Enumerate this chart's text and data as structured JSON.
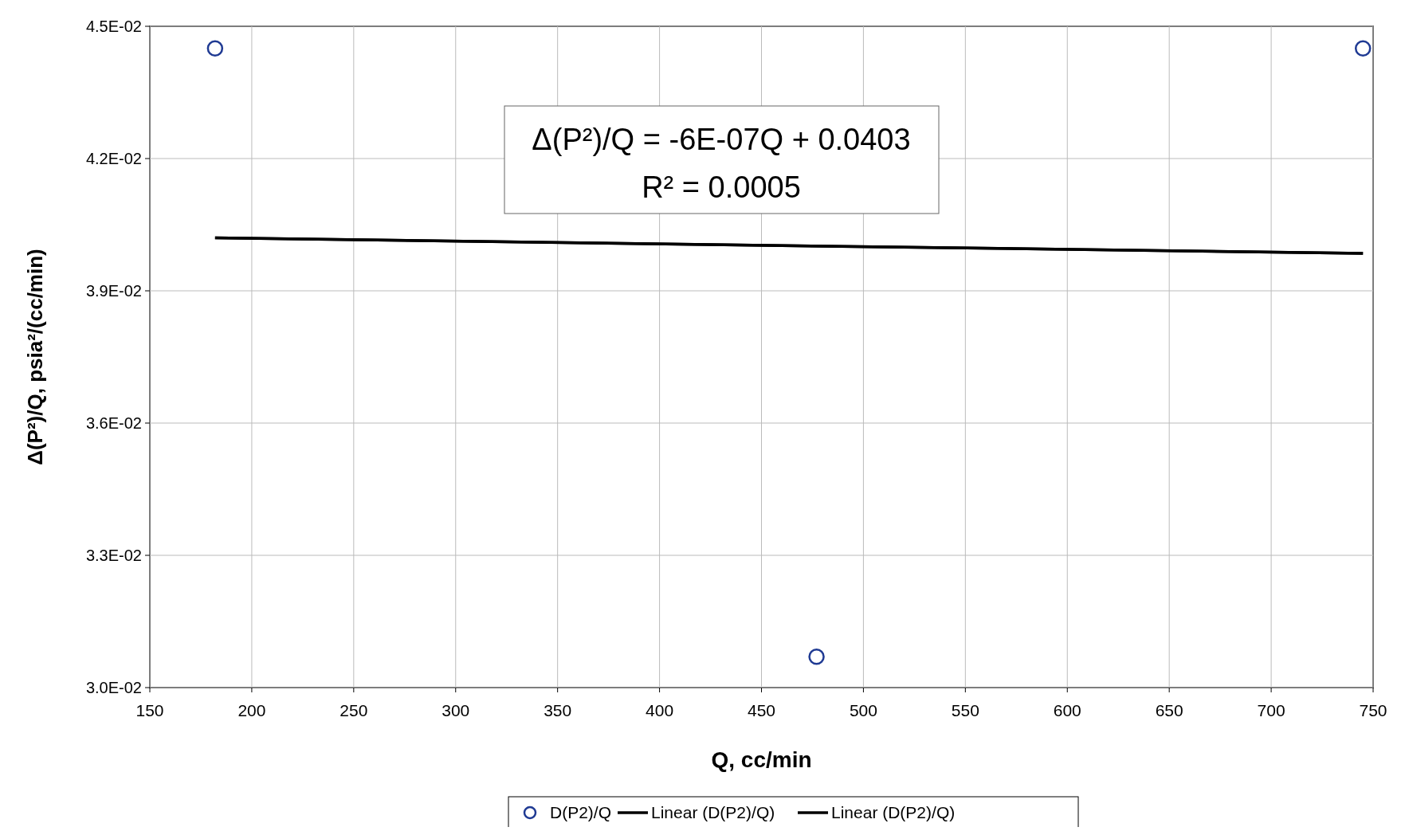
{
  "chart_data": {
    "type": "scatter",
    "xlabel": "Q, cc/min",
    "ylabel": "Δ(P²)/Q, psia²/(cc/min)",
    "xlim": [
      150,
      750
    ],
    "xticks": [
      150,
      200,
      250,
      300,
      350,
      400,
      450,
      500,
      550,
      600,
      650,
      700,
      750
    ],
    "ylim": [
      0.03,
      0.045
    ],
    "yticks": [
      {
        "value": 0.03,
        "label": "3.0E-02"
      },
      {
        "value": 0.033,
        "label": "3.3E-02"
      },
      {
        "value": 0.036,
        "label": "3.6E-02"
      },
      {
        "value": 0.039,
        "label": "3.9E-02"
      },
      {
        "value": 0.042,
        "label": "4.2E-02"
      },
      {
        "value": 0.045,
        "label": "4.5E-02"
      }
    ],
    "grid": true,
    "legend": "bottom",
    "series": [
      {
        "name": "D(P2)/Q",
        "color": "#1f3a93",
        "marker": "circle",
        "x": [
          182,
          477,
          745
        ],
        "values": [
          0.0445,
          0.0307,
          0.0445
        ]
      },
      {
        "name": "Linear (D(P2)/Q)",
        "type": "line",
        "color": "#000000",
        "marker": "none",
        "x": [
          182,
          745
        ],
        "values": [
          0.0402,
          0.03985
        ]
      },
      {
        "name": "Linear (D(P2)/Q)",
        "type": "line",
        "color": "#000000",
        "marker": "none",
        "x": [
          182,
          745
        ],
        "values": [
          0.0402,
          0.03985
        ]
      }
    ],
    "annotations": [
      "Δ(P²)/Q = -6E-07Q + 0.0403",
      "R² = 0.0005"
    ]
  }
}
